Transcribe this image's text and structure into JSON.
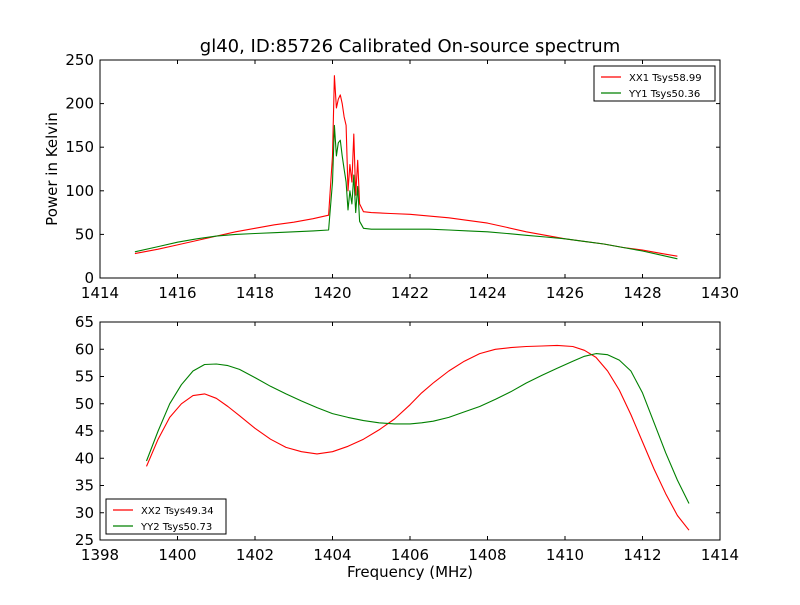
{
  "figure_title": "gl40, ID:85726 Calibrated On-source spectrum",
  "colors": {
    "xx": "#ff0000",
    "yy": "#008000",
    "axes": "#000000",
    "background": "#ffffff"
  },
  "chart_data": [
    {
      "type": "line",
      "title": "gl40, ID:85726 Calibrated On-source spectrum",
      "xlabel": "",
      "ylabel": "Power in Kelvin",
      "xlim": [
        1414,
        1430
      ],
      "ylim": [
        0,
        250
      ],
      "xticks": [
        "1414",
        "1416",
        "1418",
        "1420",
        "1422",
        "1424",
        "1426",
        "1428",
        "1430"
      ],
      "yticks": [
        "0",
        "50",
        "100",
        "150",
        "200",
        "250"
      ],
      "legend_position": "top-right",
      "grid": false,
      "series": [
        {
          "name": "XX1 Tsys58.99",
          "color": "#ff0000",
          "x": [
            1414.9,
            1415.5,
            1416,
            1416.5,
            1417,
            1417.5,
            1418,
            1418.5,
            1419,
            1419.5,
            1419.9,
            1420.0,
            1420.05,
            1420.1,
            1420.15,
            1420.2,
            1420.25,
            1420.3,
            1420.35,
            1420.4,
            1420.45,
            1420.5,
            1420.55,
            1420.6,
            1420.65,
            1420.7,
            1420.8,
            1421,
            1421.5,
            1422,
            1422.5,
            1423,
            1423.5,
            1424,
            1424.5,
            1425,
            1425.5,
            1426,
            1426.5,
            1427,
            1427.5,
            1428,
            1428.5,
            1428.9
          ],
          "y": [
            28,
            33,
            38,
            43,
            48,
            53,
            57,
            61,
            64,
            68,
            72,
            140,
            232,
            195,
            205,
            210,
            200,
            185,
            175,
            100,
            130,
            110,
            165,
            95,
            135,
            85,
            76,
            75,
            74,
            73,
            71,
            69,
            66,
            63,
            58,
            53,
            49,
            45,
            42,
            39,
            35,
            32,
            28,
            25
          ]
        },
        {
          "name": "YY1 Tsys50.36",
          "color": "#008000",
          "x": [
            1414.9,
            1415.5,
            1416,
            1416.5,
            1417,
            1417.5,
            1418,
            1418.5,
            1419,
            1419.5,
            1419.9,
            1420.0,
            1420.05,
            1420.1,
            1420.15,
            1420.2,
            1420.25,
            1420.3,
            1420.35,
            1420.4,
            1420.45,
            1420.5,
            1420.55,
            1420.6,
            1420.65,
            1420.7,
            1420.8,
            1421,
            1421.5,
            1422,
            1422.5,
            1423,
            1423.5,
            1424,
            1424.5,
            1425,
            1425.5,
            1426,
            1426.5,
            1427,
            1427.5,
            1428,
            1428.5,
            1428.9
          ],
          "y": [
            30,
            36,
            41,
            45,
            48,
            50,
            51,
            52,
            53,
            54,
            55,
            110,
            175,
            140,
            155,
            158,
            140,
            125,
            110,
            78,
            100,
            85,
            118,
            75,
            105,
            65,
            57,
            56,
            56,
            56,
            56,
            55,
            54,
            53,
            51,
            49,
            47,
            45,
            42,
            39,
            35,
            31,
            26,
            22
          ]
        }
      ]
    },
    {
      "type": "line",
      "title": "",
      "xlabel": "Frequency (MHz)",
      "ylabel": "",
      "xlim": [
        1398,
        1414
      ],
      "ylim": [
        25,
        65
      ],
      "xticks": [
        "1398",
        "1400",
        "1402",
        "1404",
        "1406",
        "1408",
        "1410",
        "1412",
        "1414"
      ],
      "yticks": [
        "25",
        "30",
        "35",
        "40",
        "45",
        "50",
        "55",
        "60",
        "65"
      ],
      "legend_position": "bottom-left",
      "grid": false,
      "series": [
        {
          "name": "XX2 Tsys49.34",
          "color": "#ff0000",
          "x": [
            1399.2,
            1399.5,
            1399.8,
            1400.1,
            1400.4,
            1400.7,
            1401.0,
            1401.3,
            1401.6,
            1402.0,
            1402.4,
            1402.8,
            1403.2,
            1403.6,
            1404.0,
            1404.4,
            1404.8,
            1405.2,
            1405.6,
            1406.0,
            1406.3,
            1406.6,
            1407.0,
            1407.4,
            1407.8,
            1408.2,
            1408.6,
            1409.0,
            1409.4,
            1409.8,
            1410.2,
            1410.5,
            1410.8,
            1411.1,
            1411.4,
            1411.7,
            1412.0,
            1412.3,
            1412.6,
            1412.9,
            1413.2
          ],
          "y": [
            38.5,
            43.5,
            47.5,
            50.0,
            51.5,
            51.8,
            51.0,
            49.5,
            47.8,
            45.5,
            43.5,
            42.0,
            41.2,
            40.8,
            41.2,
            42.2,
            43.5,
            45.2,
            47.2,
            49.8,
            52.0,
            53.8,
            56.0,
            57.8,
            59.2,
            60.0,
            60.3,
            60.5,
            60.6,
            60.7,
            60.5,
            59.8,
            58.5,
            56.0,
            52.5,
            48.0,
            43.0,
            38.0,
            33.5,
            29.5,
            26.8
          ]
        },
        {
          "name": "YY2 Tsys50.73",
          "color": "#008000",
          "x": [
            1399.2,
            1399.5,
            1399.8,
            1400.1,
            1400.4,
            1400.7,
            1401.0,
            1401.3,
            1401.6,
            1402.0,
            1402.4,
            1402.8,
            1403.2,
            1403.6,
            1404.0,
            1404.4,
            1404.8,
            1405.2,
            1405.6,
            1406.0,
            1406.3,
            1406.6,
            1407.0,
            1407.4,
            1407.8,
            1408.2,
            1408.6,
            1409.0,
            1409.4,
            1409.8,
            1410.2,
            1410.5,
            1410.8,
            1411.1,
            1411.4,
            1411.7,
            1412.0,
            1412.3,
            1412.6,
            1412.9,
            1413.2
          ],
          "y": [
            39.5,
            45.0,
            50.0,
            53.5,
            56.0,
            57.2,
            57.3,
            57.0,
            56.3,
            54.8,
            53.2,
            51.8,
            50.5,
            49.3,
            48.2,
            47.5,
            46.9,
            46.5,
            46.3,
            46.3,
            46.5,
            46.8,
            47.5,
            48.5,
            49.5,
            50.8,
            52.2,
            53.8,
            55.2,
            56.5,
            57.8,
            58.7,
            59.2,
            59.0,
            58.0,
            56.0,
            52.0,
            46.5,
            41.0,
            36.0,
            31.7
          ]
        }
      ]
    }
  ]
}
